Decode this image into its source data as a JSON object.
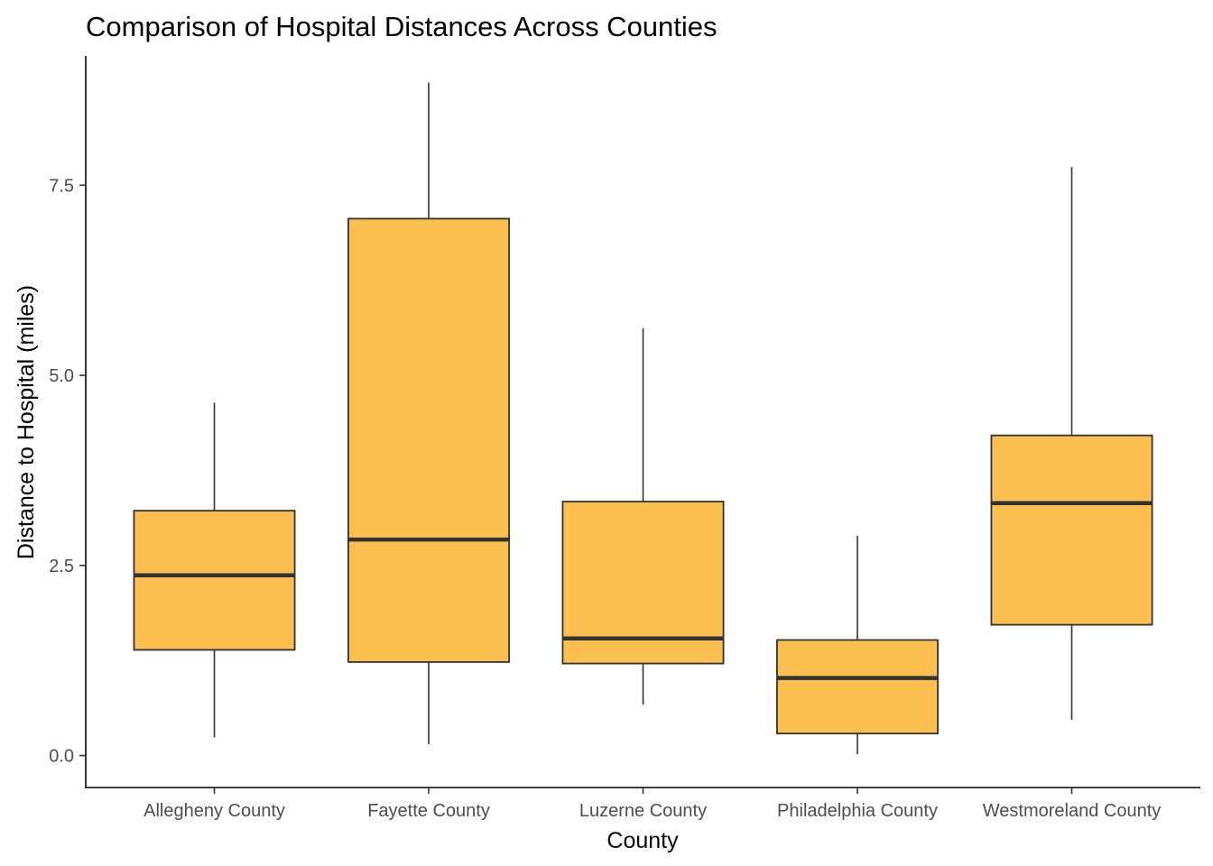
{
  "chart_data": {
    "type": "boxplot",
    "title": "Comparison of Hospital Distances Across Counties",
    "xlabel": "County",
    "ylabel": "Distance to Hospital (miles)",
    "ylim": [
      -0.42,
      9.2
    ],
    "yticks": [
      0.0,
      2.5,
      5.0,
      7.5
    ],
    "ytick_labels": [
      "0.0",
      "2.5",
      "5.0",
      "7.5"
    ],
    "grid": false,
    "legend": "none",
    "box_color": "#fdbf4f",
    "line_color": "#333333",
    "categories": [
      "Allegheny County",
      "Fayette County",
      "Luzerne County",
      "Philadelphia County",
      "Westmoreland County"
    ],
    "boxes": [
      {
        "whisker_low": 0.24,
        "q1": 1.39,
        "median": 2.37,
        "q3": 3.22,
        "whisker_high": 4.64
      },
      {
        "whisker_low": 0.15,
        "q1": 1.23,
        "median": 2.84,
        "q3": 7.06,
        "whisker_high": 8.85
      },
      {
        "whisker_low": 0.67,
        "q1": 1.21,
        "median": 1.54,
        "q3": 3.34,
        "whisker_high": 5.62
      },
      {
        "whisker_low": 0.02,
        "q1": 0.29,
        "median": 1.02,
        "q3": 1.52,
        "whisker_high": 2.89
      },
      {
        "whisker_low": 0.47,
        "q1": 1.72,
        "median": 3.32,
        "q3": 4.21,
        "whisker_high": 7.74
      }
    ]
  }
}
